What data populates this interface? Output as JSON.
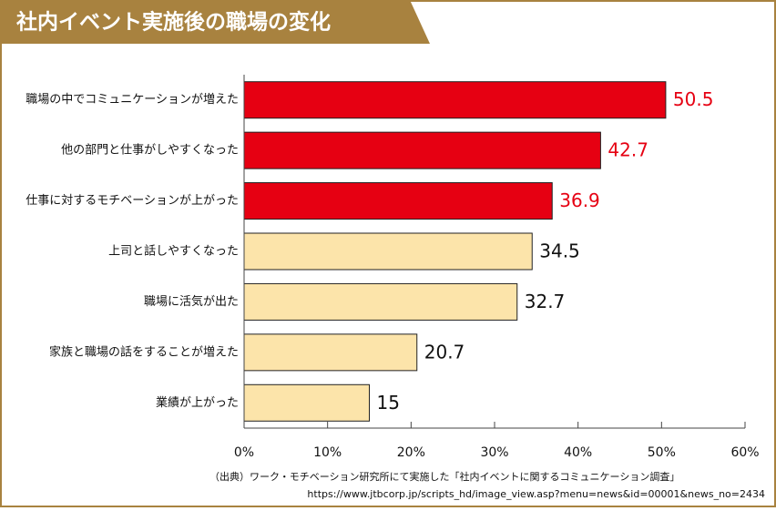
{
  "chart_data": {
    "type": "hbar",
    "title": "社内イベント実施後の職場の変化",
    "categories": [
      "職場の中でコミュニケーションが増えた",
      "他の部門と仕事がしやすくなった",
      "仕事に対するモチベーションが上がった",
      "上司と話しやすくなった",
      "職場に活気が出た",
      "家族と職場の話をすることが増えた",
      "業績が上がった"
    ],
    "values": [
      50.5,
      42.7,
      36.9,
      34.5,
      32.7,
      20.7,
      15
    ],
    "colors": [
      "#e60012",
      "#e60012",
      "#e60012",
      "#fce4aa",
      "#fce4aa",
      "#fce4aa",
      "#fce4aa"
    ],
    "value_label_colors": [
      "#e60012",
      "#e60012",
      "#e60012",
      "#111111",
      "#111111",
      "#111111",
      "#111111"
    ],
    "xlim": [
      0,
      60
    ],
    "xticks": [
      {
        "value": 0,
        "label": "0%"
      },
      {
        "value": 10,
        "label": "10%"
      },
      {
        "value": 20,
        "label": "20%"
      },
      {
        "value": 30,
        "label": "30%"
      },
      {
        "value": 40,
        "label": "40%"
      },
      {
        "value": 50,
        "label": "50%"
      },
      {
        "value": 60,
        "label": "60%"
      }
    ],
    "source": [
      "（出典）ワーク・モチベーション研究所にて実施した「社内イベントに関するコミュニケーション調査」",
      "https://www.jtbcorp.jp/scripts_hd/image_view.asp?menu=news&id=00001&news_no=2434"
    ]
  }
}
